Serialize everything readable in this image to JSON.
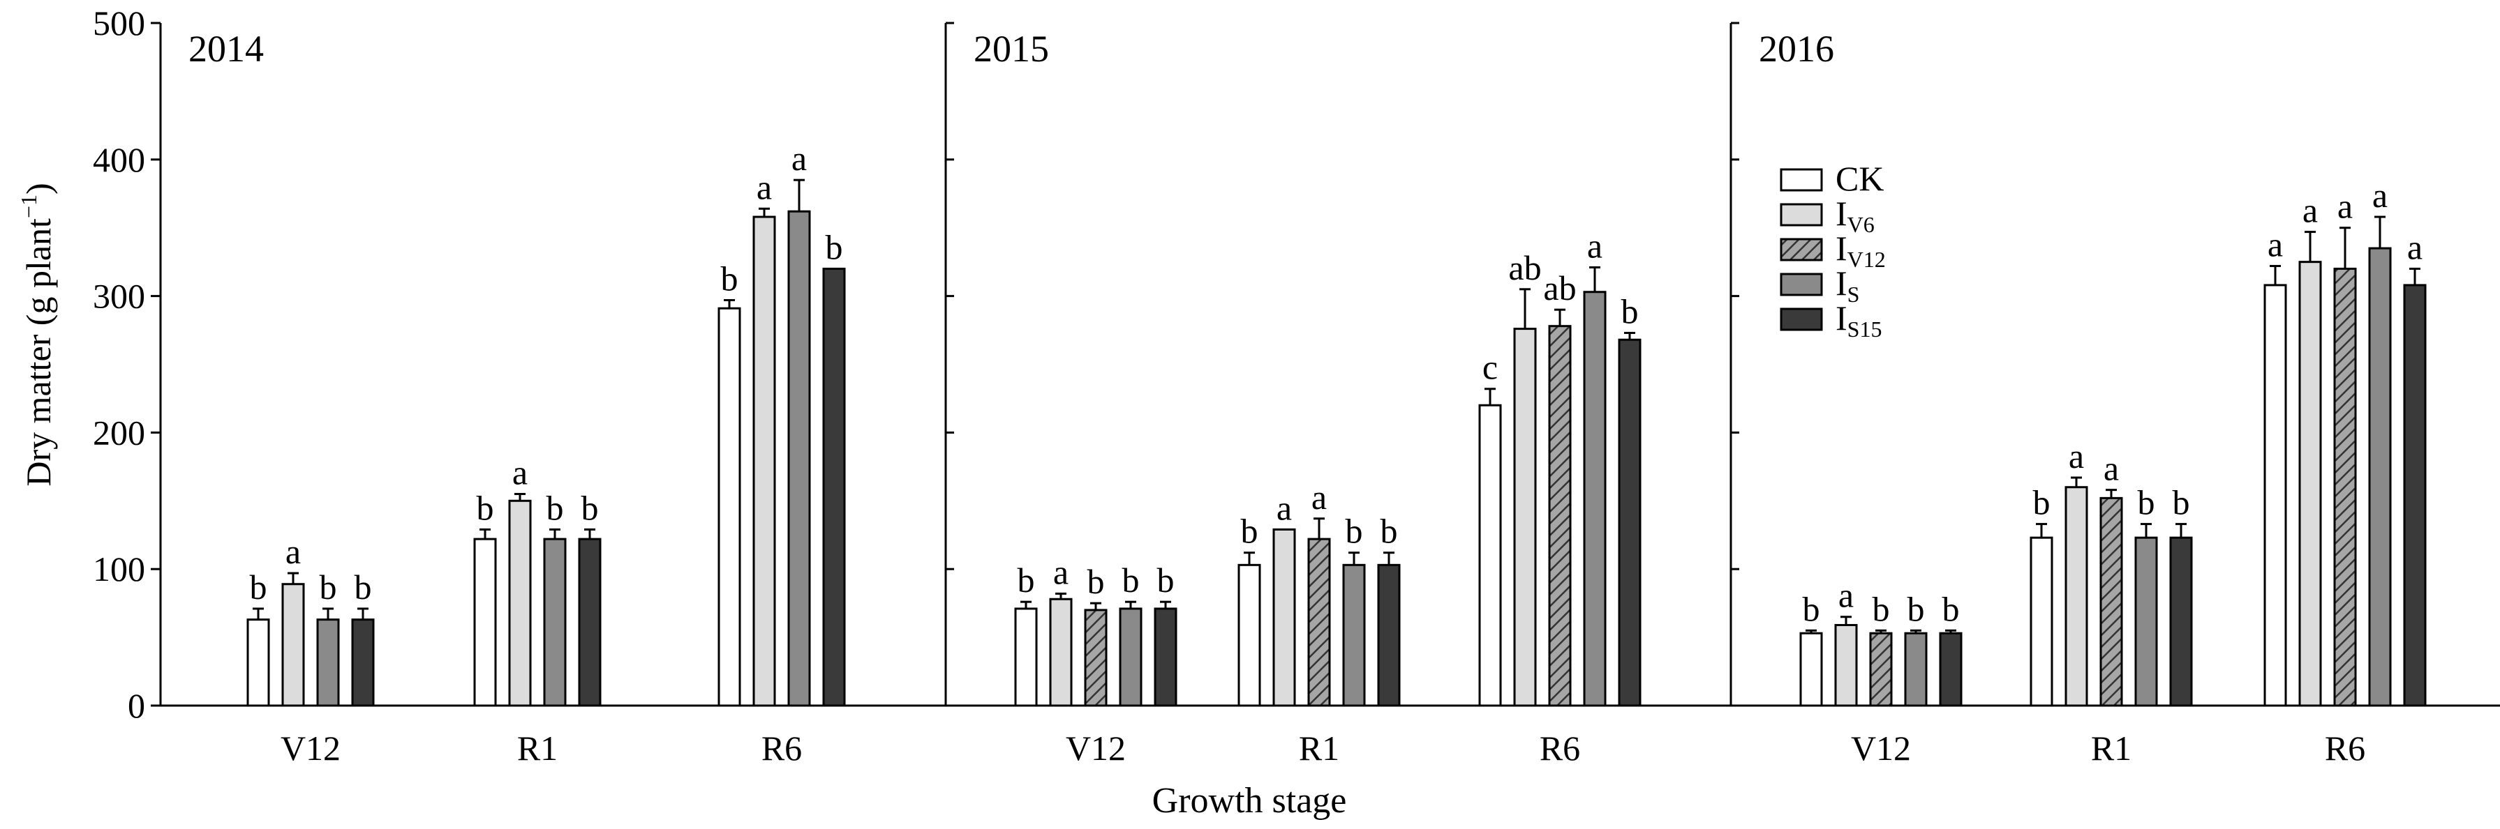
{
  "chart_data": {
    "type": "bar",
    "xlabel": "Growth stage",
    "ylabel_main": "Dry matter (g plant",
    "ylabel_sup": "−1",
    "ylabel_close": ")",
    "ylim": [
      0,
      500
    ],
    "yticks": [
      0,
      100,
      200,
      300,
      400,
      500
    ],
    "categories": [
      "V12",
      "R1",
      "R6"
    ],
    "legend": [
      {
        "main": "CK",
        "sub": "",
        "fill": "#ffffff",
        "pattern": false
      },
      {
        "main": "I",
        "sub": "V6",
        "fill": "#dcdcdc",
        "pattern": false
      },
      {
        "main": "I",
        "sub": "V12",
        "fill": "#a6a6a6",
        "pattern": true
      },
      {
        "main": "I",
        "sub": "S",
        "fill": "#8a8a8a",
        "pattern": false
      },
      {
        "main": "I",
        "sub": "S15",
        "fill": "#3a3a3a",
        "pattern": false
      }
    ],
    "legend_location": "upper-left of 2016 panel",
    "panels": [
      {
        "title": "2014",
        "series": [
          {
            "key": "CK",
            "values": [
              63,
              122,
              291
            ],
            "errors": [
              8,
              7,
              6
            ],
            "letters": [
              "b",
              "b",
              "b"
            ]
          },
          {
            "key": "IV6",
            "values": [
              89,
              150,
              358
            ],
            "errors": [
              8,
              5,
              6
            ],
            "letters": [
              "a",
              "a",
              "a"
            ]
          },
          {
            "key": "IS",
            "values": [
              63,
              122,
              362
            ],
            "errors": [
              8,
              7,
              23
            ],
            "letters": [
              "b",
              "b",
              "a"
            ]
          },
          {
            "key": "IS15",
            "values": [
              63,
              122,
              320
            ],
            "errors": [
              8,
              7,
              0
            ],
            "letters": [
              "b",
              "b",
              "b"
            ]
          }
        ]
      },
      {
        "title": "2015",
        "series": [
          {
            "key": "CK",
            "values": [
              71,
              103,
              220
            ],
            "errors": [
              5,
              9,
              12
            ],
            "letters": [
              "b",
              "b",
              "c"
            ]
          },
          {
            "key": "IV6",
            "values": [
              78,
              129,
              276
            ],
            "errors": [
              4,
              0,
              29
            ],
            "letters": [
              "a",
              "a",
              "ab"
            ]
          },
          {
            "key": "IV12",
            "values": [
              70,
              122,
              278
            ],
            "errors": [
              5,
              15,
              12
            ],
            "letters": [
              "b",
              "a",
              "ab"
            ]
          },
          {
            "key": "IS",
            "values": [
              71,
              103,
              303
            ],
            "errors": [
              5,
              9,
              18
            ],
            "letters": [
              "b",
              "b",
              "a"
            ]
          },
          {
            "key": "IS15",
            "values": [
              71,
              103,
              268
            ],
            "errors": [
              5,
              9,
              5
            ],
            "letters": [
              "b",
              "b",
              "b"
            ]
          }
        ]
      },
      {
        "title": "2016",
        "series": [
          {
            "key": "CK",
            "values": [
              53,
              123,
              308
            ],
            "errors": [
              2,
              10,
              14
            ],
            "letters": [
              "b",
              "b",
              "a"
            ]
          },
          {
            "key": "IV6",
            "values": [
              59,
              160,
              325
            ],
            "errors": [
              6,
              7,
              22
            ],
            "letters": [
              "a",
              "a",
              "a"
            ]
          },
          {
            "key": "IV12",
            "values": [
              53,
              152,
              320
            ],
            "errors": [
              2,
              6,
              30
            ],
            "letters": [
              "b",
              "a",
              "a"
            ]
          },
          {
            "key": "IS",
            "values": [
              53,
              123,
              335
            ],
            "errors": [
              2,
              10,
              23
            ],
            "letters": [
              "b",
              "b",
              "a"
            ]
          },
          {
            "key": "IS15",
            "values": [
              53,
              123,
              308
            ],
            "errors": [
              2,
              10,
              12
            ],
            "letters": [
              "b",
              "b",
              "a"
            ]
          }
        ]
      }
    ]
  }
}
